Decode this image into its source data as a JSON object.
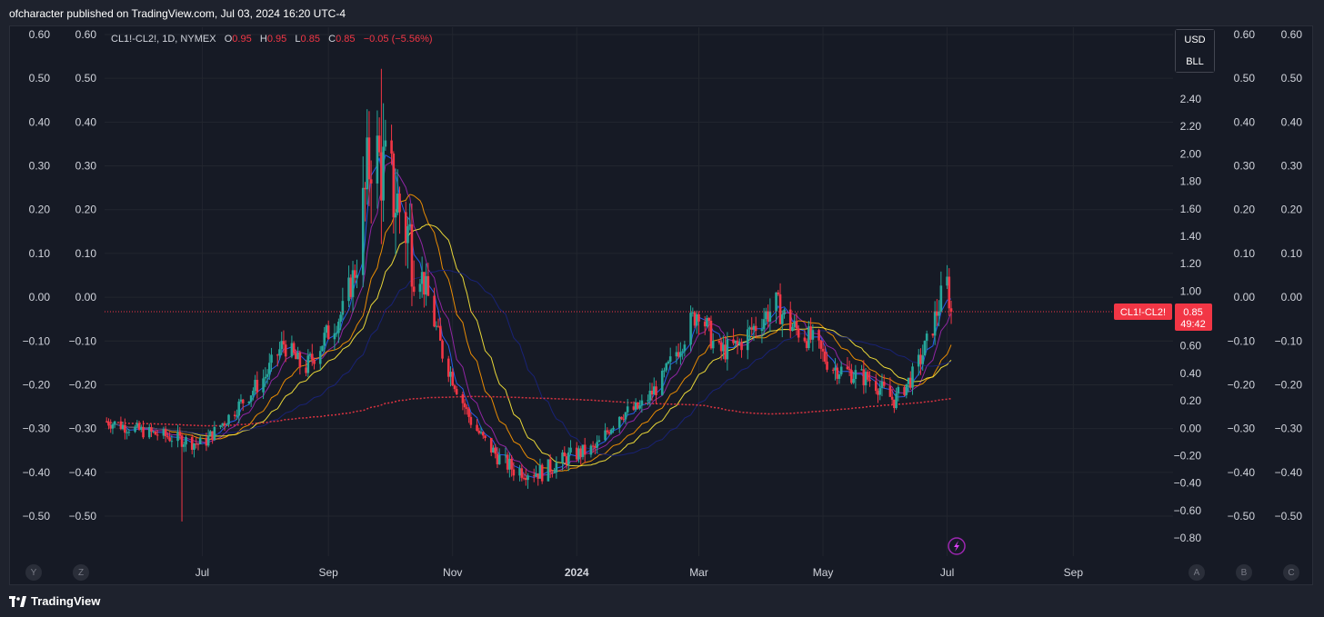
{
  "header": {
    "publisher_text": "ofcharacter published on TradingView.com, Jul 03, 2024 16:20 UTC-4"
  },
  "legend": {
    "symbol": "CL1!-CL2!, 1D, NYMEX",
    "o_label": "O",
    "o_value": "0.95",
    "h_label": "H",
    "h_value": "0.95",
    "l_label": "L",
    "l_value": "0.85",
    "c_label": "C",
    "c_value": "0.85",
    "change": "−0.05 (−5.56%)"
  },
  "scale_buttons": {
    "currency": "USD",
    "unit": "BLL"
  },
  "price_tag": {
    "label": "CL1!-CL2!",
    "price": "0.85",
    "countdown": "49:42"
  },
  "footer": {
    "brand": "TradingView"
  },
  "bottom_buttons": {
    "left1": "Y",
    "left2": "Z",
    "right1": "A",
    "right2": "B",
    "right3": "C"
  },
  "colors": {
    "up": "#26a69a",
    "down": "#f23645",
    "ma_blue": "#2962ff",
    "ma_purple": "#9c27b0",
    "ma_orange": "#ff9800",
    "ma_yellow": "#ffeb3b",
    "ma_navy": "#1a237e",
    "ma_red": "#f23645"
  },
  "chart_data": {
    "type": "candlestick",
    "title": "CL1!-CL2!, 1D, NYMEX",
    "main_axis": {
      "ylim": [
        -0.86,
        2.52
      ],
      "ticks": [
        "2.40",
        "2.20",
        "2.00",
        "1.80",
        "1.60",
        "1.40",
        "1.20",
        "1.00",
        "0.80",
        "0.60",
        "0.40",
        "0.20",
        "0.00",
        "−0.20",
        "−0.40",
        "−0.60",
        "−0.80"
      ]
    },
    "outer_axis": {
      "ylim": [
        -0.51,
        0.6
      ],
      "ticks": [
        "0.60",
        "0.50",
        "0.40",
        "0.30",
        "0.20",
        "0.10",
        "0.00",
        "−0.10",
        "−0.20",
        "−0.30",
        "−0.40",
        "−0.50"
      ]
    },
    "x_labels": [
      "Jul",
      "Sep",
      "Nov",
      "2024",
      "Mar",
      "May",
      "Jul",
      "Sep"
    ],
    "x_range": [
      "2023-05-14",
      "2024-10-20"
    ],
    "x_label_dates": [
      "2023-07-01",
      "2023-09-01",
      "2023-11-01",
      "2024-01-01",
      "2024-03-01",
      "2024-05-01",
      "2024-07-01",
      "2024-09-01"
    ],
    "price_series": [
      [
        "2023-05-15",
        0.05
      ],
      [
        "2023-06-01",
        -0.02
      ],
      [
        "2023-06-20",
        -0.08
      ],
      [
        "2023-07-01",
        -0.12
      ],
      [
        "2023-07-15",
        0.1
      ],
      [
        "2023-08-01",
        0.38
      ],
      [
        "2023-08-10",
        0.62
      ],
      [
        "2023-08-20",
        0.42
      ],
      [
        "2023-09-01",
        0.7
      ],
      [
        "2023-09-08",
        0.85
      ],
      [
        "2023-09-15",
        1.2
      ],
      [
        "2023-09-22",
        2.05
      ],
      [
        "2023-09-29",
        1.85
      ],
      [
        "2023-10-06",
        1.6
      ],
      [
        "2023-10-13",
        1.3
      ],
      [
        "2023-10-20",
        0.95
      ],
      [
        "2023-10-27",
        0.55
      ],
      [
        "2023-11-03",
        0.3
      ],
      [
        "2023-11-10",
        0.05
      ],
      [
        "2023-11-17",
        -0.1
      ],
      [
        "2023-11-24",
        -0.22
      ],
      [
        "2023-12-01",
        -0.3
      ],
      [
        "2023-12-15",
        -0.32
      ],
      [
        "2023-12-29",
        -0.2
      ],
      [
        "2024-01-10",
        -0.15
      ],
      [
        "2024-01-22",
        0.1
      ],
      [
        "2024-02-01",
        0.15
      ],
      [
        "2024-02-12",
        0.35
      ],
      [
        "2024-02-22",
        0.65
      ],
      [
        "2024-03-01",
        0.88
      ],
      [
        "2024-03-10",
        0.55
      ],
      [
        "2024-03-20",
        0.6
      ],
      [
        "2024-04-01",
        0.8
      ],
      [
        "2024-04-08",
        0.9
      ],
      [
        "2024-04-15",
        0.75
      ],
      [
        "2024-04-25",
        0.65
      ],
      [
        "2024-05-05",
        0.45
      ],
      [
        "2024-05-15",
        0.4
      ],
      [
        "2024-05-25",
        0.35
      ],
      [
        "2024-06-05",
        0.2
      ],
      [
        "2024-06-15",
        0.4
      ],
      [
        "2024-06-22",
        0.65
      ],
      [
        "2024-06-28",
        0.95
      ],
      [
        "2024-07-01",
        1.05
      ],
      [
        "2024-07-03",
        0.85
      ]
    ],
    "series": [
      {
        "name": "",
        "color": "#2962ff",
        "period": 5
      },
      {
        "name": "",
        "color": "#9c27b0",
        "period": 10
      },
      {
        "name": "",
        "color": "#ff9800",
        "period": 20
      },
      {
        "name": "",
        "color": "#ffeb3b",
        "period": 30
      },
      {
        "name": "",
        "color": "#1a237e",
        "period": 50
      },
      {
        "name": "",
        "color": "#f23645",
        "period": 200,
        "style": "dotted"
      }
    ],
    "last_price": 0.85,
    "grid": true,
    "legend_placement": "top-left"
  }
}
